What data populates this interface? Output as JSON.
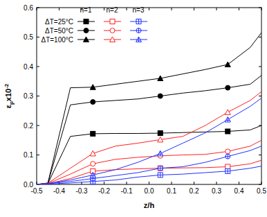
{
  "chart_data": {
    "type": "line",
    "xlabel": "z/h",
    "ylabel": [
      "ε",
      "p",
      "x10",
      "-2"
    ],
    "x": [
      -0.5,
      -0.45,
      -0.35,
      -0.25,
      -0.15,
      -0.05,
      0.05,
      0.15,
      0.25,
      0.35,
      0.45,
      0.5
    ],
    "marker_x": [
      -0.25,
      0.05,
      0.35
    ],
    "xlim": [
      -0.5,
      0.5
    ],
    "xticks": [
      -0.5,
      -0.4,
      -0.3,
      -0.2,
      -0.1,
      {
        "value": 0,
        "label": "0.0"
      },
      0.1,
      0.2,
      0.3,
      0.4,
      0.5
    ],
    "ylim": [
      0,
      0.6
    ],
    "yticks": [
      {
        "value": 0,
        "label": "0.0"
      },
      0.1,
      0.2,
      0.3,
      0.4,
      0.5,
      0.6
    ],
    "grid": false,
    "legend": "upper left",
    "series": [
      {
        "name": "ΔT=25°C",
        "group": "n=1",
        "color": "#000000",
        "marker": "filled-square",
        "values": [
          0,
          0.003,
          0.163,
          0.172,
          0.173,
          0.173,
          0.174,
          0.176,
          0.178,
          0.18,
          0.185,
          0.2
        ]
      },
      {
        "name": "ΔT=50°C",
        "group": "n=1",
        "color": "#000000",
        "marker": "filled-circle",
        "values": [
          0,
          0.004,
          0.27,
          0.28,
          0.285,
          0.29,
          0.3,
          0.31,
          0.318,
          0.328,
          0.34,
          0.37
        ]
      },
      {
        "name": "ΔT=100°C",
        "group": "n=1",
        "color": "#000000",
        "marker": "filled-triangle",
        "values": [
          0,
          0.005,
          0.328,
          0.33,
          0.34,
          0.35,
          0.36,
          0.375,
          0.39,
          0.407,
          0.465,
          0.515
        ]
      },
      {
        "name": "ΔT=25°C",
        "group": "n=2",
        "color": "#ff2020",
        "marker": "open-square",
        "values": [
          0,
          0.002,
          0.02,
          0.045,
          0.05,
          0.053,
          0.055,
          0.056,
          0.057,
          0.06,
          0.07,
          0.082
        ]
      },
      {
        "name": "ΔT=50°C",
        "group": "n=2",
        "color": "#ff2020",
        "marker": "open-circle",
        "values": [
          0,
          0.003,
          0.035,
          0.07,
          0.085,
          0.092,
          0.097,
          0.1,
          0.102,
          0.112,
          0.13,
          0.15
        ]
      },
      {
        "name": "ΔT=100°C",
        "group": "n=2",
        "color": "#ff2020",
        "marker": "open-triangle",
        "values": [
          0,
          0.004,
          0.055,
          0.105,
          0.13,
          0.14,
          0.152,
          0.163,
          0.2,
          0.245,
          0.285,
          0.315
        ]
      },
      {
        "name": "ΔT=25°C",
        "group": "n=3",
        "color": "#2030ff",
        "marker": "crossed-square",
        "values": [
          0,
          0.001,
          0.005,
          0.01,
          0.015,
          0.025,
          0.032,
          0.035,
          0.04,
          0.045,
          0.055,
          0.062
        ]
      },
      {
        "name": "ΔT=50°C",
        "group": "n=3",
        "color": "#2030ff",
        "marker": "crossed-circle",
        "values": [
          0,
          0.002,
          0.01,
          0.02,
          0.03,
          0.04,
          0.055,
          0.06,
          0.075,
          0.095,
          0.115,
          0.13
        ]
      },
      {
        "name": "ΔT=100°C",
        "group": "n=3",
        "color": "#2030ff",
        "marker": "crossed-triangle",
        "values": [
          0,
          0.003,
          0.015,
          0.032,
          0.05,
          0.075,
          0.105,
          0.14,
          0.175,
          0.22,
          0.265,
          0.293
        ]
      }
    ]
  }
}
